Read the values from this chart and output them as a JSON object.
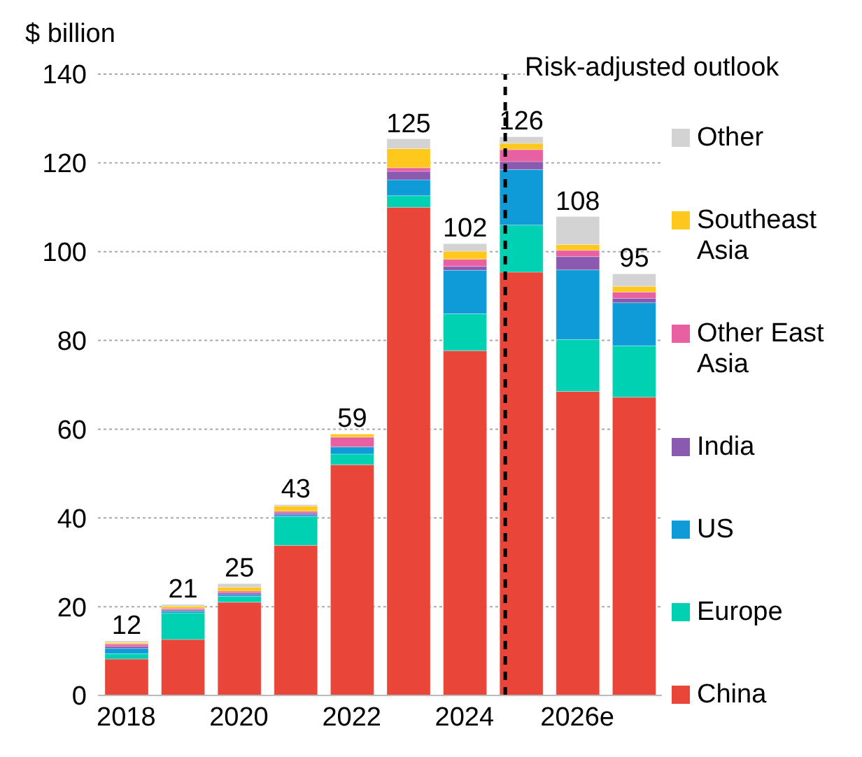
{
  "chart_data": {
    "type": "bar",
    "ylabel": "$ billion",
    "categories": [
      "2018",
      null,
      "2020",
      null,
      "2022",
      null,
      "2024",
      null,
      "2026e",
      null
    ],
    "stacked": true,
    "ylim": [
      0,
      140
    ],
    "yticks": [
      0,
      20,
      40,
      60,
      80,
      100,
      120,
      140
    ],
    "grid": "y",
    "legend": "right",
    "series": [
      {
        "name": "China",
        "color": "#e94539",
        "values": [
          8.2,
          12.6,
          21,
          33.8,
          52,
          110,
          77.7,
          95.4,
          68.5,
          67.2
        ]
      },
      {
        "name": "Europe",
        "color": "#00d1b2",
        "values": [
          1.2,
          6,
          1.3,
          6.5,
          2.4,
          2.6,
          8.3,
          10.6,
          11.7,
          11.6
        ]
      },
      {
        "name": "US",
        "color": "#0e9bd8",
        "values": [
          1.2,
          0.4,
          0.4,
          0.4,
          1.6,
          3.6,
          9.8,
          12.5,
          15.7,
          9.7
        ]
      },
      {
        "name": "India",
        "color": "#8a5ab0",
        "values": [
          0.5,
          0.3,
          0.4,
          0.4,
          null,
          1.9,
          0.9,
          1.8,
          3,
          1
        ]
      },
      {
        "name": "Other East Asia",
        "color": "#e85fa2",
        "values": [
          0.5,
          0.3,
          0.4,
          0.4,
          2.2,
          0.8,
          1.6,
          2.7,
          1.4,
          1.4
        ]
      },
      {
        "name": "Southeast Asia",
        "color": "#fec81d",
        "values": [
          0.3,
          0.5,
          0.9,
          1.2,
          0.7,
          4.3,
          1.8,
          1.4,
          1.3,
          1.3
        ]
      },
      {
        "name": "Other",
        "color": "#d3d3d3",
        "values": [
          0.4,
          0.4,
          0.8,
          0.3,
          0,
          2.2,
          1.7,
          1.5,
          6.3,
          2.8
        ]
      }
    ],
    "totals": [
      "12",
      "21",
      "25",
      "43",
      "59",
      "125",
      "102",
      "126",
      "108",
      "95"
    ],
    "annotations": [
      "Risk-adjusted outlook"
    ]
  }
}
